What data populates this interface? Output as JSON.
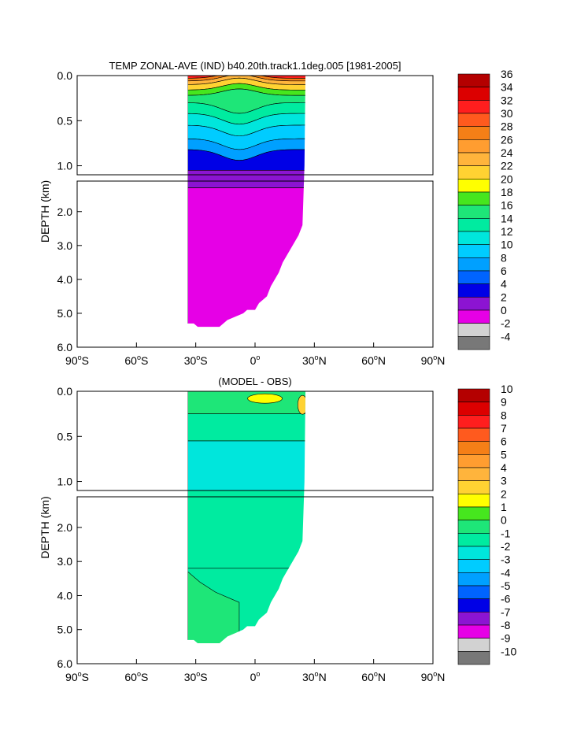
{
  "chart_data": [
    {
      "type": "heatmap",
      "title": "TEMP ZONAL-AVE (IND) b40.20th.track1.1deg.005 [1981-2005]",
      "ylabel": "DEPTH (km)",
      "x_ticks": [
        {
          "value": -90,
          "deg": "90",
          "hemi": "S"
        },
        {
          "value": -60,
          "deg": "60",
          "hemi": "S"
        },
        {
          "value": -30,
          "deg": "30",
          "hemi": "S"
        },
        {
          "value": 0,
          "deg": "0",
          "hemi": ""
        },
        {
          "value": 30,
          "deg": "30",
          "hemi": "N"
        },
        {
          "value": 60,
          "deg": "60",
          "hemi": "N"
        },
        {
          "value": 90,
          "deg": "90",
          "hemi": "N"
        }
      ],
      "xlim": [
        -90,
        90
      ],
      "upper_panel": {
        "ylim": [
          0.0,
          1.1
        ],
        "yticks": [
          "0.0",
          "0.5",
          "1.0"
        ]
      },
      "lower_panel": {
        "ylim": [
          1.1,
          6.0
        ],
        "yticks": [
          "2.0",
          "3.0",
          "4.0",
          "5.0",
          "6.0"
        ]
      },
      "data_extent_lat": [
        -34,
        25
      ],
      "colorbar": {
        "labels": [
          "36",
          "34",
          "32",
          "30",
          "28",
          "26",
          "24",
          "22",
          "20",
          "18",
          "16",
          "14",
          "12",
          "10",
          "8",
          "6",
          "4",
          "2",
          "0",
          "-2",
          "-4"
        ],
        "colors": [
          "#b40000",
          "#dc0000",
          "#ff1e1e",
          "#ff5a1e",
          "#f57f17",
          "#ff9d30",
          "#ffb43c",
          "#ffd232",
          "#ffff00",
          "#46e61e",
          "#1ee678",
          "#00eba0",
          "#00e6dc",
          "#00ccff",
          "#00a0ff",
          "#0064ff",
          "#0000e6",
          "#8c14d2",
          "#e600e6",
          "#d2d2d2",
          "#787878"
        ]
      },
      "contour_bands": [
        {
          "level": 2,
          "depth_km": [
            1.0,
            1.3
          ]
        },
        {
          "level": 6,
          "depth_km": [
            0.75,
            1.0
          ]
        },
        {
          "level": 12,
          "depth_km": [
            0.3,
            0.75
          ]
        },
        {
          "level": 20,
          "depth_km": [
            0.1,
            0.3
          ]
        },
        {
          "level": 28,
          "depth_km": [
            0.0,
            0.1
          ]
        }
      ]
    },
    {
      "type": "heatmap",
      "title": "(MODEL - OBS)",
      "ylabel": "DEPTH (km)",
      "xlim": [
        -90,
        90
      ],
      "upper_panel": {
        "ylim": [
          0.0,
          1.1
        ],
        "yticks": [
          "0.0",
          "0.5",
          "1.0"
        ]
      },
      "lower_panel": {
        "ylim": [
          1.1,
          6.0
        ],
        "yticks": [
          "2.0",
          "3.0",
          "4.0",
          "5.0",
          "6.0"
        ]
      },
      "data_extent_lat": [
        -34,
        25
      ],
      "colorbar": {
        "labels": [
          "10",
          "9",
          "8",
          "7",
          "6",
          "5",
          "4",
          "3",
          "2",
          "1",
          "0",
          "-1",
          "-2",
          "-3",
          "-4",
          "-5",
          "-6",
          "-7",
          "-8",
          "-9",
          "-10"
        ],
        "colors": [
          "#b40000",
          "#dc0000",
          "#ff1e1e",
          "#ff5a1e",
          "#f57f17",
          "#ff9d30",
          "#ffb43c",
          "#ffd232",
          "#ffff00",
          "#46e61e",
          "#1ee678",
          "#00eba0",
          "#00e6dc",
          "#00ccff",
          "#00a0ff",
          "#0064ff",
          "#0000e6",
          "#8c14d2",
          "#e600e6",
          "#d2d2d2",
          "#787878"
        ]
      }
    }
  ]
}
